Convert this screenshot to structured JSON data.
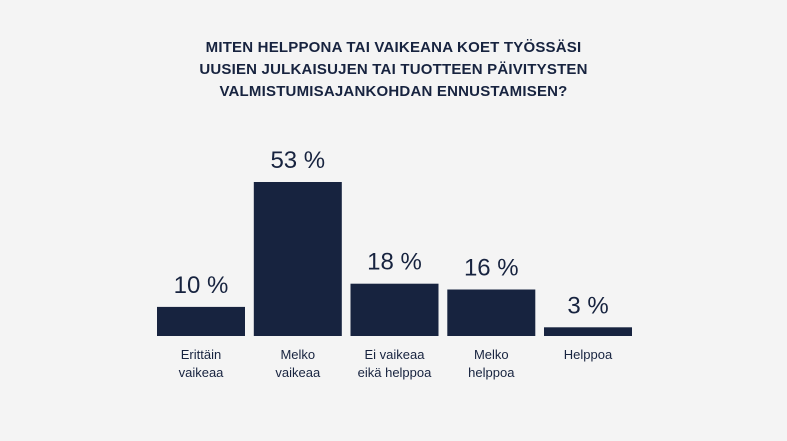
{
  "chart_data": {
    "type": "bar",
    "title_lines": [
      "MITEN HELPPONA TAI VAIKEANA KOET TYÖSSÄSI",
      "UUSIEN JULKAISUJEN TAI TUOTTEEN PÄIVITYSTEN",
      "VALMISTUMISAJANKOHDAN ENNUSTAMISEN?"
    ],
    "categories": [
      [
        "Erittäin",
        "vaikeaa"
      ],
      [
        "Melko",
        "vaikeaa"
      ],
      [
        "Ei vaikeaa",
        "eikä helppoa"
      ],
      [
        "Melko",
        "helppoa"
      ],
      [
        "Helppoa"
      ]
    ],
    "values": [
      10,
      53,
      18,
      16,
      3
    ],
    "value_labels": [
      "10 %",
      "53 %",
      "18 %",
      "16 %",
      "3 %"
    ],
    "unit": "%",
    "ylim": [
      0,
      53
    ],
    "grid": false,
    "bar_color": "#17233f"
  }
}
